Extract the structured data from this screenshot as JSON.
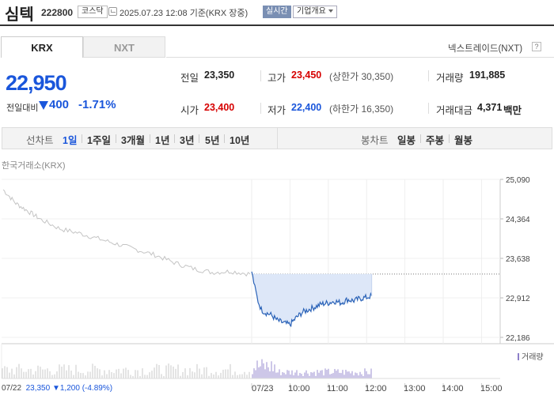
{
  "header": {
    "stock_name": "심텍",
    "stock_code": "222800",
    "market": "코스닥",
    "as_of": "2025.07.23 12:08 기준(KRX 장중)",
    "realtime": "실시간",
    "company_info": "기업개요"
  },
  "exchange_tabs": {
    "krx": "KRX",
    "nxt": "NXT",
    "nextrade_link": "넥스트레이드(NXT)"
  },
  "price": {
    "current": "22,950",
    "change_label": "전일대비",
    "change_amount": "400",
    "change_percent": "-1.71%",
    "direction": "down"
  },
  "quote": {
    "prev_close": {
      "label": "전일",
      "value": "23,350"
    },
    "high": {
      "label": "고가",
      "value": "23,450",
      "limit": "(상한가 30,350)"
    },
    "volume": {
      "label": "거래량",
      "value": "191,885"
    },
    "open": {
      "label": "시가",
      "value": "23,400"
    },
    "low": {
      "label": "저가",
      "value": "22,400",
      "limit": "(하한가 16,350)"
    },
    "amount": {
      "label": "거래대금",
      "value": "4,371",
      "unit": "백만"
    }
  },
  "periods": {
    "line_label": "선차트",
    "line": [
      "1일",
      "1주일",
      "3개월",
      "1년",
      "3년",
      "5년",
      "10년"
    ],
    "active": "1일",
    "candle_label": "봉차트",
    "candle": [
      "일봉",
      "주봉",
      "월봉"
    ]
  },
  "chart_data": {
    "type": "line",
    "source_label": "한국거래소(KRX)",
    "y_ticks": [
      "25,090",
      "24,364",
      "23,638",
      "22,912",
      "22,186"
    ],
    "ylim": [
      22186,
      25090
    ],
    "reference_price": 23350,
    "x_ticks": [
      "07/23",
      "10:00",
      "11:00",
      "12:00",
      "13:00",
      "14:00",
      "15:00"
    ],
    "prev_day": {
      "date": "07/22",
      "close": "23,350",
      "change": "1,200",
      "change_percent": "(-4.89%)"
    },
    "volume_label": "거래량",
    "series": [
      {
        "x": [
          "07/22 09:00",
          "07/22 09:20",
          "07/22 09:40",
          "07/22 10:00",
          "07/22 10:30",
          "07/22 11:00",
          "07/22 11:30",
          "07/22 12:00",
          "07/22 12:30",
          "07/22 13:00",
          "07/22 13:30",
          "07/22 14:00",
          "07/22 14:30",
          "07/22 15:00",
          "07/22 15:30"
        ],
        "values": [
          24900,
          24650,
          24500,
          24350,
          24180,
          24100,
          24000,
          23900,
          23800,
          23700,
          23560,
          23450,
          23380,
          23400,
          23350
        ]
      },
      {
        "x": [
          "09:00",
          "09:05",
          "09:10",
          "09:15",
          "09:20",
          "09:30",
          "09:40",
          "09:50",
          "10:00",
          "10:10",
          "10:20",
          "10:30",
          "10:40",
          "10:50",
          "11:00",
          "11:10",
          "11:20",
          "11:30",
          "11:40",
          "11:50",
          "12:00",
          "12:08"
        ],
        "values": [
          23400,
          23100,
          22850,
          22700,
          22650,
          22600,
          22500,
          22450,
          22420,
          22550,
          22650,
          22700,
          22750,
          22800,
          22820,
          22850,
          22820,
          22880,
          22860,
          22900,
          22920,
          22950
        ]
      }
    ]
  }
}
